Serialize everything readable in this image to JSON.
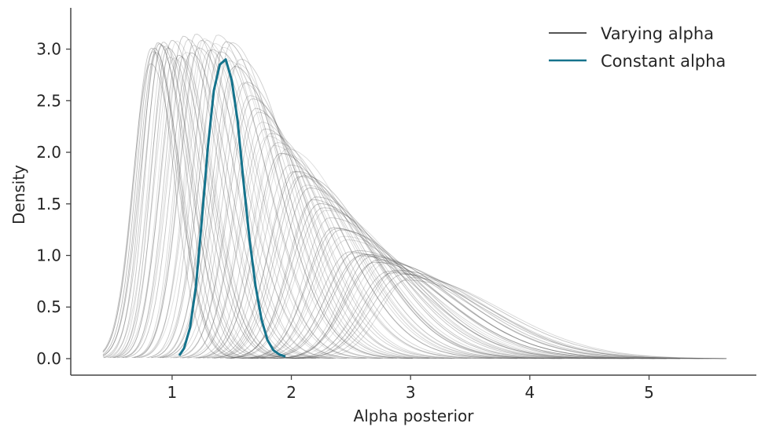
{
  "chart_data": {
    "type": "line",
    "xlabel": "Alpha posterior",
    "ylabel": "Density",
    "xlim": [
      0.15,
      5.9
    ],
    "ylim": [
      -0.16,
      3.4
    ],
    "x_ticks": [
      1,
      2,
      3,
      4,
      5
    ],
    "x_tick_labels": [
      "1",
      "2",
      "3",
      "4",
      "5"
    ],
    "y_ticks": [
      0.0,
      0.5,
      1.0,
      1.5,
      2.0,
      2.5,
      3.0
    ],
    "y_tick_labels": [
      "0.0",
      "0.5",
      "1.0",
      "1.5",
      "2.0",
      "2.5",
      "3.0"
    ],
    "grid": false,
    "legend_position": "top-right",
    "colors": {
      "varying": "#555555",
      "constant": "#15738c",
      "axis": "#444444"
    },
    "series": [
      {
        "name": "Varying alpha",
        "kind": "density-family",
        "count": 90,
        "x_min": 0.42,
        "x_max": 5.65,
        "peak_x_range": [
          0.82,
          3.0
        ],
        "peak_y_range": [
          3.2,
          0.72
        ],
        "peak_points": [
          {
            "x": 0.82,
            "y": 3.05
          },
          {
            "x": 1.0,
            "y": 3.1
          },
          {
            "x": 1.2,
            "y": 3.18
          },
          {
            "x": 1.38,
            "y": 3.22
          },
          {
            "x": 1.55,
            "y": 3.0
          },
          {
            "x": 1.75,
            "y": 2.35
          },
          {
            "x": 1.9,
            "y": 2.15
          },
          {
            "x": 2.2,
            "y": 1.6
          },
          {
            "x": 2.5,
            "y": 1.1
          },
          {
            "x": 2.8,
            "y": 0.92
          },
          {
            "x": 3.0,
            "y": 0.8
          }
        ]
      },
      {
        "name": "Constant alpha",
        "kind": "density",
        "x": [
          1.06,
          1.1,
          1.15,
          1.2,
          1.25,
          1.3,
          1.35,
          1.4,
          1.45,
          1.5,
          1.55,
          1.6,
          1.65,
          1.7,
          1.75,
          1.8,
          1.85,
          1.9,
          1.95
        ],
        "values": [
          0.03,
          0.1,
          0.3,
          0.7,
          1.35,
          2.05,
          2.6,
          2.85,
          2.9,
          2.7,
          2.3,
          1.7,
          1.15,
          0.7,
          0.38,
          0.18,
          0.08,
          0.04,
          0.02
        ]
      }
    ]
  }
}
